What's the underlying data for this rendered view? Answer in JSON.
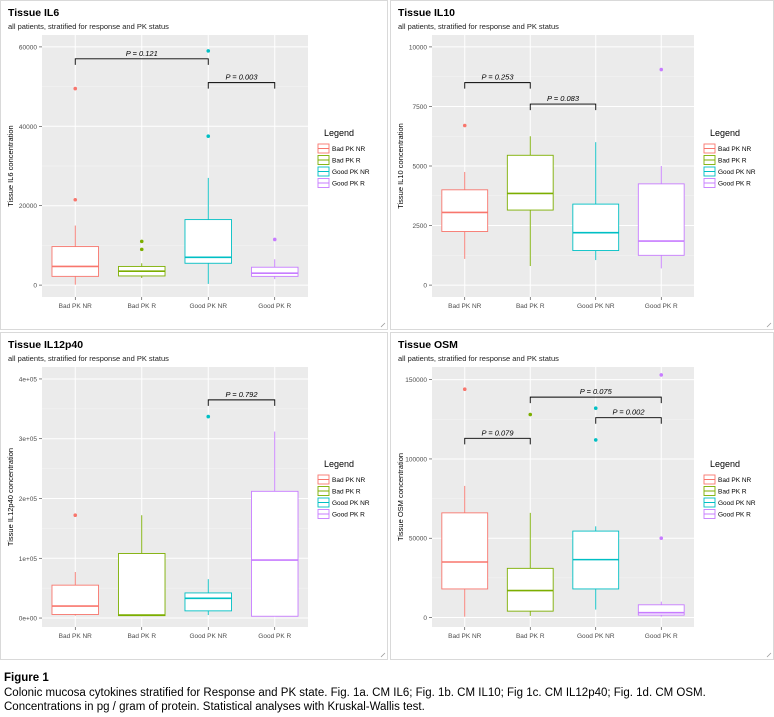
{
  "colors": {
    "panel_bg": "#ebebeb",
    "grid_major": "#ffffff",
    "grid_minor": "#f5f5f5",
    "Bad PK NR": "#F8766D",
    "Bad PK R": "#7CAE00",
    "Good PK NR": "#00BFC4",
    "Good PK R": "#C77CFF"
  },
  "chart_data": [
    {
      "type": "boxplot",
      "title": "Tissue IL6",
      "subtitle": "all patients, stratified for response and PK status",
      "xlabel": "",
      "ylabel": "Tissue IL6 concentration",
      "ylim": [
        -3000,
        63000
      ],
      "yticks": [
        0,
        20000,
        40000,
        60000
      ],
      "ytick_labels": [
        "0",
        "20000",
        "40000",
        "60000"
      ],
      "legend_title": "Legend",
      "legend_position": "right",
      "categories": [
        "Bad PK NR",
        "Bad PK R",
        "Good PK NR",
        "Good PK R"
      ],
      "boxes": [
        {
          "group": "Bad PK NR",
          "whisker_low": 100,
          "q1": 2200,
          "median": 4700,
          "q3": 9700,
          "whisker_high": 15000,
          "outliers": [
            21500,
            49500
          ]
        },
        {
          "group": "Bad PK R",
          "whisker_low": 1800,
          "q1": 2300,
          "median": 3500,
          "q3": 4700,
          "whisker_high": 5500,
          "outliers": [
            9000,
            11000
          ]
        },
        {
          "group": "Good PK NR",
          "whisker_low": 300,
          "q1": 5500,
          "median": 7000,
          "q3": 16500,
          "whisker_high": 27000,
          "outliers": [
            37500,
            59000
          ]
        },
        {
          "group": "Good PK R",
          "whisker_low": 1500,
          "q1": 2200,
          "median": 3000,
          "q3": 4500,
          "whisker_high": 6500,
          "outliers": [
            11500
          ]
        }
      ],
      "comparisons": [
        {
          "from": 0,
          "to": 2,
          "y": 57000,
          "label": "P = 0.121"
        },
        {
          "from": 2,
          "to": 3,
          "y": 51000,
          "label": "P = 0.003"
        }
      ]
    },
    {
      "type": "boxplot",
      "title": "Tissue IL10",
      "subtitle": "all patients, stratified for response and PK status",
      "xlabel": "",
      "ylabel": "Tissue IL10 concentration",
      "ylim": [
        -500,
        10500
      ],
      "yticks": [
        0,
        2500,
        5000,
        7500,
        10000
      ],
      "ytick_labels": [
        "0",
        "2500",
        "5000",
        "7500",
        "10000"
      ],
      "legend_title": "Legend",
      "legend_position": "right",
      "categories": [
        "Bad PK NR",
        "Bad PK R",
        "Good PK NR",
        "Good PK R"
      ],
      "boxes": [
        {
          "group": "Bad PK NR",
          "whisker_low": 1100,
          "q1": 2250,
          "median": 3050,
          "q3": 4000,
          "whisker_high": 4750,
          "outliers": [
            6700
          ]
        },
        {
          "group": "Bad PK R",
          "whisker_low": 800,
          "q1": 3150,
          "median": 3850,
          "q3": 5450,
          "whisker_high": 6250,
          "outliers": []
        },
        {
          "group": "Good PK NR",
          "whisker_low": 1050,
          "q1": 1450,
          "median": 2200,
          "q3": 3400,
          "whisker_high": 6000,
          "outliers": []
        },
        {
          "group": "Good PK R",
          "whisker_low": 700,
          "q1": 1250,
          "median": 1850,
          "q3": 4250,
          "whisker_high": 5000,
          "outliers": [
            9050
          ]
        }
      ],
      "comparisons": [
        {
          "from": 0,
          "to": 1,
          "y": 8500,
          "label": "P = 0.253"
        },
        {
          "from": 1,
          "to": 2,
          "y": 7600,
          "label": "P = 0.083"
        }
      ]
    },
    {
      "type": "boxplot",
      "title": "Tissue IL12p40",
      "subtitle": "all patients, stratified for response and PK status",
      "xlabel": "",
      "ylabel": "Tissue IL12p40 concentration",
      "ylim": [
        -15000,
        420000
      ],
      "yticks": [
        0,
        100000,
        200000,
        300000,
        400000
      ],
      "ytick_labels": [
        "0e+00",
        "1e+05",
        "2e+05",
        "3e+05",
        "4e+05"
      ],
      "legend_title": "Legend",
      "legend_position": "right",
      "categories": [
        "Bad PK NR",
        "Bad PK R",
        "Good PK NR",
        "Good PK R"
      ],
      "boxes": [
        {
          "group": "Bad PK NR",
          "whisker_low": 4000,
          "q1": 6000,
          "median": 20000,
          "q3": 55000,
          "whisker_high": 77000,
          "outliers": [
            172000
          ]
        },
        {
          "group": "Bad PK R",
          "whisker_low": 3000,
          "q1": 4000,
          "median": 5000,
          "q3": 108000,
          "whisker_high": 172000,
          "outliers": []
        },
        {
          "group": "Good PK NR",
          "whisker_low": 5000,
          "q1": 12000,
          "median": 33000,
          "q3": 42000,
          "whisker_high": 65000,
          "outliers": [
            337000
          ]
        },
        {
          "group": "Good PK R",
          "whisker_low": 3000,
          "q1": 3000,
          "median": 97000,
          "q3": 212000,
          "whisker_high": 312000,
          "outliers": []
        }
      ],
      "comparisons": [
        {
          "from": 2,
          "to": 3,
          "y": 365000,
          "label": "P = 0.792"
        }
      ]
    },
    {
      "type": "boxplot",
      "title": "Tissue OSM",
      "subtitle": "all patients, stratified for response and PK status",
      "xlabel": "",
      "ylabel": "Tissue OSM concentration",
      "ylim": [
        -6000,
        158000
      ],
      "yticks": [
        0,
        50000,
        100000,
        150000
      ],
      "ytick_labels": [
        "0",
        "50000",
        "100000",
        "150000"
      ],
      "legend_title": "Legend",
      "legend_position": "right",
      "categories": [
        "Bad PK NR",
        "Bad PK R",
        "Good PK NR",
        "Good PK R"
      ],
      "boxes": [
        {
          "group": "Bad PK NR",
          "whisker_low": 500,
          "q1": 18000,
          "median": 35000,
          "q3": 66000,
          "whisker_high": 83000,
          "outliers": [
            144000
          ]
        },
        {
          "group": "Bad PK R",
          "whisker_low": 1000,
          "q1": 4000,
          "median": 17000,
          "q3": 31000,
          "whisker_high": 66000,
          "outliers": [
            128000
          ]
        },
        {
          "group": "Good PK NR",
          "whisker_low": 5000,
          "q1": 18000,
          "median": 36500,
          "q3": 54500,
          "whisker_high": 57500,
          "outliers": [
            112000,
            132000
          ]
        },
        {
          "group": "Good PK R",
          "whisker_low": 500,
          "q1": 1500,
          "median": 3000,
          "q3": 8000,
          "whisker_high": 10000,
          "outliers": [
            50000,
            153000
          ]
        }
      ],
      "comparisons": [
        {
          "from": 0,
          "to": 1,
          "y": 113000,
          "label": "P = 0.079"
        },
        {
          "from": 1,
          "to": 3,
          "y": 139000,
          "label": "P = 0.075"
        },
        {
          "from": 2,
          "to": 3,
          "y": 126000,
          "label": "P = 0.002"
        }
      ]
    }
  ],
  "caption": {
    "title": "Figure 1",
    "line1": "Colonic mucosa cytokines stratified for Response and PK state. Fig. 1a. CM IL6; Fig. 1b. CM IL10; Fig 1c. CM IL12p40; Fig. 1d. CM OSM.",
    "line2": "Concentrations in pg / gram of protein. Statistical analyses with Kruskal-Wallis test."
  }
}
